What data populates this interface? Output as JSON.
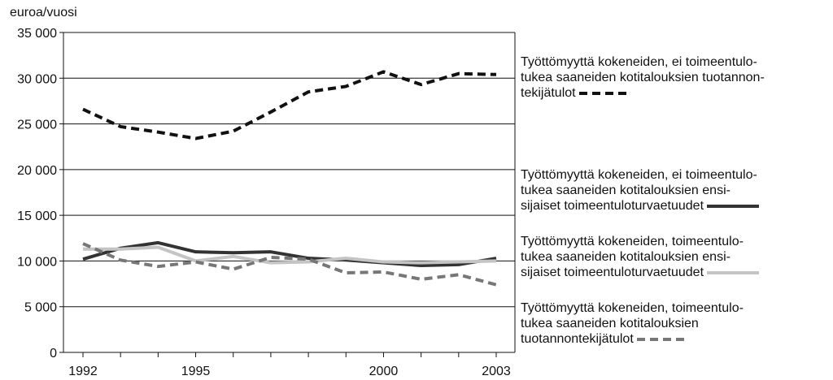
{
  "chart_data": {
    "type": "line",
    "y_label": "euroa/vuosi",
    "categories": [
      "1992",
      null,
      null,
      "1995",
      null,
      null,
      null,
      null,
      "2000",
      null,
      null,
      "2003"
    ],
    "ylim": [
      0,
      35000
    ],
    "yticks": [
      0,
      {
        "value": 5000,
        "label": "5 000"
      },
      {
        "value": 10000,
        "label": "10 000"
      },
      {
        "value": 15000,
        "label": "15 000"
      },
      {
        "value": 20000,
        "label": "20 000"
      },
      {
        "value": 25000,
        "label": "25 000"
      },
      {
        "value": 30000,
        "label": "30 000"
      },
      {
        "value": 35000,
        "label": "35 000"
      }
    ],
    "grid": true,
    "series": [
      {
        "name": "Työttömyyttä kokeneiden, ei toimeentulo-\ntukea saaneiden kotitalouksien tuotannon-\ntekijätulot",
        "color": "#111111",
        "dashed": true,
        "values": [
          26600,
          24700,
          24100,
          23400,
          24200,
          26300,
          28500,
          29100,
          30700,
          29300,
          30500,
          30400
        ]
      },
      {
        "name": "Työttömyyttä kokeneiden, ei toimeentulo-\ntukea saaneiden kotitalouksien ensi-\nsijaiset toimeentuloturvaetuudet",
        "color": "#333333",
        "dashed": false,
        "values": [
          10200,
          11400,
          12000,
          11000,
          10900,
          11000,
          10300,
          10100,
          9800,
          9500,
          9600,
          10300
        ]
      },
      {
        "name": "Työttömyyttä kokeneiden, toimeentulo-\ntukea saaneiden kotitalouksien ensi-\nsijaiset toimeentuloturvaetuudet",
        "color": "#c4c4c4",
        "dashed": false,
        "values": [
          11300,
          11300,
          11500,
          10000,
          10500,
          9800,
          9900,
          10300,
          9900,
          9800,
          9900,
          10000
        ]
      },
      {
        "name": "Työttömyyttä kokeneiden, toimeentulo-\ntukea saaneiden kotitalouksien\ntuotannontekijätulot",
        "color": "#777777",
        "dashed": true,
        "values": [
          11900,
          10100,
          9400,
          9900,
          9100,
          10400,
          10200,
          8700,
          8800,
          8000,
          8500,
          7400
        ]
      }
    ]
  }
}
